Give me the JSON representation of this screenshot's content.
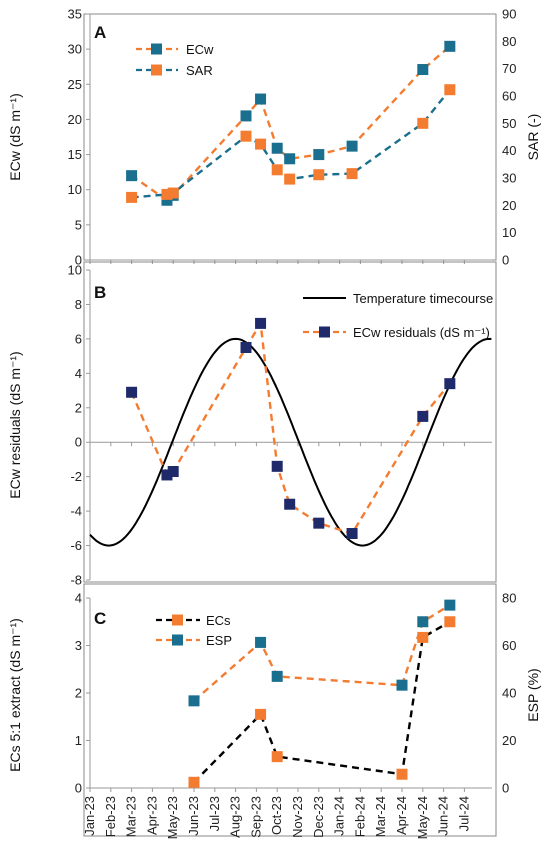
{
  "months": [
    "Jan-23",
    "Feb-23",
    "Mar-23",
    "Apr-23",
    "May-23",
    "Jun-23",
    "Jul-23",
    "Aug-23",
    "Sep-23",
    "Oct-23",
    "Nov-23",
    "Dec-23",
    "Jan-24",
    "Feb-24",
    "Mar-24",
    "Apr-24",
    "May-24",
    "Jun-24",
    "Jul-24"
  ],
  "colors": {
    "orange": "#f47c30",
    "teal": "#1a6e8e",
    "navy": "#1f2a6b",
    "black": "#000000"
  },
  "chart_data": [
    {
      "panel": "A",
      "type": "line",
      "ylabel": "ECw (dS m⁻¹)",
      "y2label": "SAR (-)",
      "ylim": [
        0,
        35
      ],
      "y2lim": [
        0,
        90
      ],
      "yticks": [
        0,
        5,
        10,
        15,
        20,
        25,
        30,
        35
      ],
      "y2ticks": [
        0,
        10,
        20,
        30,
        40,
        50,
        60,
        70,
        80,
        90
      ],
      "series": [
        {
          "name": "ECw",
          "axis": "left",
          "color": "teal",
          "line_color": "orange",
          "x": [
            2.0,
            3.7,
            4.0,
            7.5,
            8.2,
            9.0,
            9.6,
            11.0,
            12.6,
            16.0,
            17.3
          ],
          "values": [
            12.0,
            8.5,
            9.2,
            20.5,
            22.9,
            15.9,
            14.4,
            15.0,
            16.2,
            27.1,
            30.4
          ]
        },
        {
          "name": "SAR",
          "axis": "right",
          "color": "orange",
          "line_color": "teal",
          "x": [
            2.0,
            3.7,
            4.0,
            7.5,
            8.2,
            9.0,
            9.6,
            11.0,
            12.6,
            16.0,
            17.3
          ],
          "values": [
            22.9,
            24.0,
            24.5,
            45.3,
            42.4,
            33.0,
            29.6,
            31.2,
            31.6,
            50.0,
            62.3
          ]
        }
      ]
    },
    {
      "panel": "B",
      "type": "line",
      "ylabel": "ECw residuals (dS m⁻¹)",
      "ylim": [
        -8,
        10
      ],
      "yticks": [
        -8,
        -6,
        -4,
        -2,
        0,
        2,
        4,
        6,
        8,
        10
      ],
      "series": [
        {
          "name": "Temperature timecourse",
          "color": "black",
          "style": "solid",
          "curve": {
            "amplitude": 6,
            "peak_x": 7.0,
            "period": 12.2
          }
        },
        {
          "name": "ECw residuals (dS m⁻¹)",
          "color": "navy",
          "line_color": "orange",
          "x": [
            2.0,
            3.7,
            4.0,
            7.5,
            8.2,
            9.0,
            9.6,
            11.0,
            12.6,
            16.0,
            17.3
          ],
          "values": [
            2.9,
            -1.9,
            -1.7,
            5.5,
            6.9,
            -1.4,
            -3.6,
            -4.7,
            -5.3,
            1.5,
            3.4
          ]
        }
      ]
    },
    {
      "panel": "C",
      "type": "line",
      "ylabel": "ECs 5:1 extract (dS m⁻¹)",
      "y2label": "ESP (%)",
      "ylim": [
        0,
        4
      ],
      "y2lim": [
        0,
        80
      ],
      "yticks": [
        0,
        1,
        2,
        3,
        4
      ],
      "y2ticks": [
        0,
        20,
        40,
        60,
        80
      ],
      "series": [
        {
          "name": "ECs",
          "axis": "left",
          "color": "orange",
          "line_color": "black",
          "x": [
            5.0,
            8.2,
            9.0,
            15.0,
            16.0,
            17.3
          ],
          "values": [
            0.12,
            1.55,
            0.66,
            0.29,
            3.17,
            3.5
          ]
        },
        {
          "name": "ESP",
          "axis": "right",
          "color": "teal",
          "line_color": "orange",
          "x": [
            5.0,
            8.2,
            9.0,
            15.0,
            16.0,
            17.3
          ],
          "values": [
            36.7,
            61.3,
            47.0,
            43.3,
            70.0,
            77.0
          ]
        }
      ]
    }
  ]
}
